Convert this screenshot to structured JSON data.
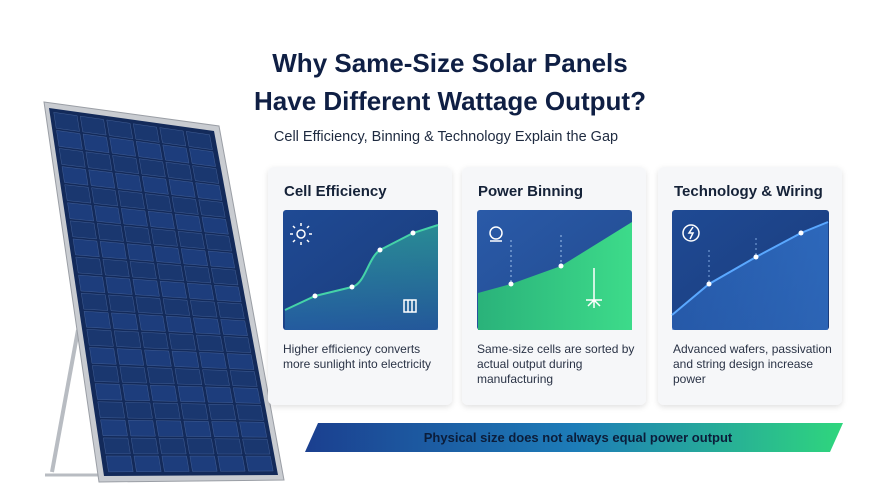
{
  "header": {
    "title_lines": [
      "Why Same-Size Solar Panels",
      "Have Different Wattage Output?"
    ],
    "subtitle": "Cell Efficiency, Binning & Technology Explain the Gap"
  },
  "cards": [
    {
      "title": "Cell Efficiency",
      "text": "Higher efficiency converts more sunlight into electricity"
    },
    {
      "title": "Power Binning",
      "text": "Same-size cells are sorted by actual output during manufacturing"
    },
    {
      "title": "Technology & Wiring",
      "text": "Advanced wafers, passivation and string design increase power"
    }
  ],
  "banner": "Physical size does not always equal power output"
}
